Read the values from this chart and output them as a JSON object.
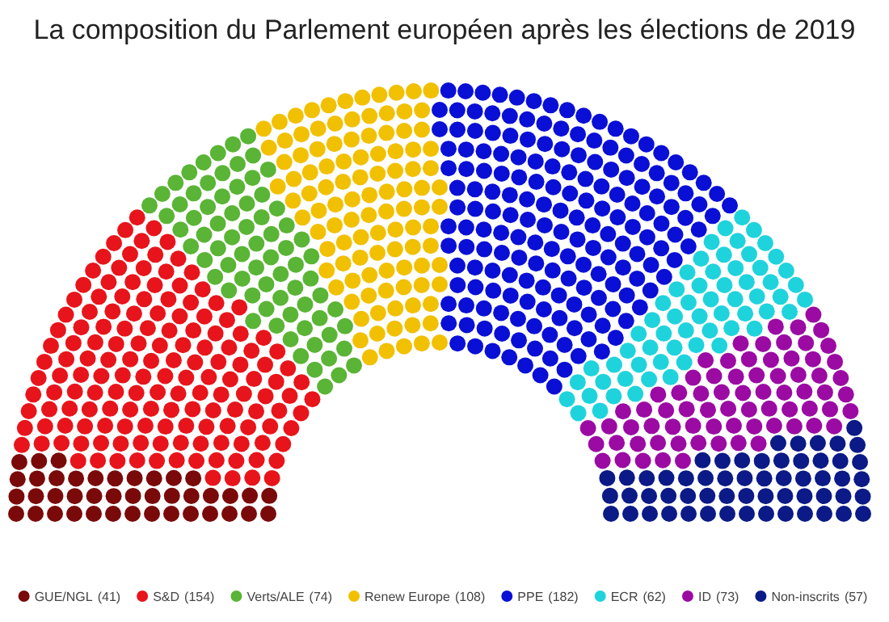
{
  "chart_data": {
    "type": "other",
    "title": "La composition du Parlement européen après les élections de 2019",
    "categories": [
      "GUE/NGL",
      "S&D",
      "Verts/ALE",
      "Renew Europe",
      "PPE",
      "ECR",
      "ID",
      "Non-inscrits"
    ],
    "values": [
      41,
      154,
      74,
      108,
      182,
      62,
      73,
      57
    ],
    "value_labels": [
      "(41)",
      "(154)",
      "(74)",
      "(108)",
      "(182)",
      "(62)",
      "(73)",
      "(57)"
    ],
    "colors": [
      "#7a0a0a",
      "#e8141b",
      "#5ab435",
      "#f1c000",
      "#0a0fd6",
      "#1fd3dc",
      "#9b0ba3",
      "#0b1a86"
    ]
  }
}
